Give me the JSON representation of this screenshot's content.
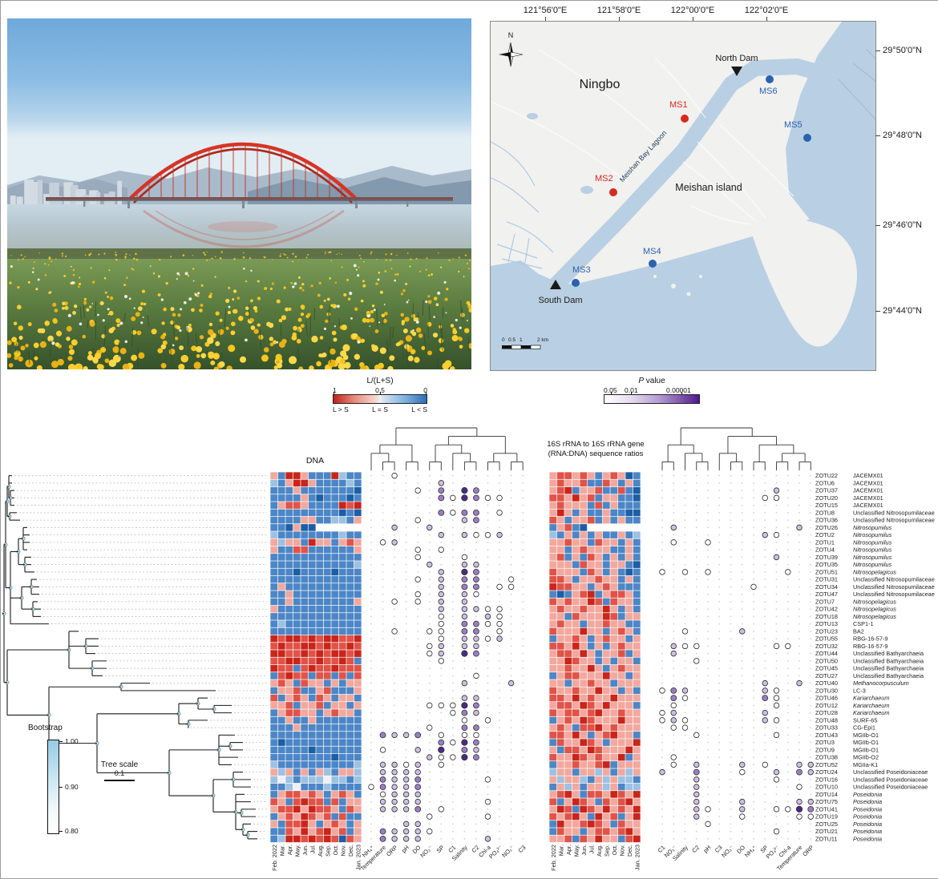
{
  "map": {
    "x_labels": [
      "121°56'0\"E",
      "121°58'0\"E",
      "122°00'0\"E",
      "122°02'0\"E"
    ],
    "y_labels": [
      "29°50'0\"N",
      "29°48'0\"N",
      "29°46'0\"N",
      "29°44'0\"N"
    ],
    "city": "Ningbo",
    "island": "Meishan island",
    "lagoon": "Meishan Bay Lagoon",
    "north_dam": "North Dam",
    "south_dam": "South Dam",
    "compass": "N",
    "scale_ticks": [
      "0",
      "0.5",
      "1",
      "2 km"
    ],
    "sites": [
      {
        "name": "MS1",
        "color": "#d62a20"
      },
      {
        "name": "MS2",
        "color": "#d62a20"
      },
      {
        "name": "MS3",
        "color": "#2b62ae"
      },
      {
        "name": "MS4",
        "color": "#2b62ae"
      },
      {
        "name": "MS5",
        "color": "#2b62ae"
      },
      {
        "name": "MS6",
        "color": "#2b62ae"
      }
    ],
    "water_color": "#b9cfe3",
    "land_color": "#f1f1ef"
  },
  "titles": {
    "dna": "DNA",
    "rna_line1": "16S rRNA to 16S rRNA gene",
    "rna_line2": "(RNA:DNA) sequence ratios"
  },
  "chart_data": {
    "type": "heatmap",
    "legend_ratio": {
      "title": "L/(L+S)",
      "tick_labels": [
        "1",
        "0.5",
        "0"
      ],
      "sub_labels": [
        "L > S",
        "L = S",
        "L < S"
      ]
    },
    "legend_p": {
      "title_italic": "P",
      "title_rest": " value",
      "tick_labels": [
        "0.05",
        "0.01",
        "0.00001"
      ]
    },
    "bootstrap": {
      "title": "Bootstrap",
      "ticks": [
        "1.00",
        "0.90",
        "0.80"
      ]
    },
    "tree_scale": {
      "title": "Tree scale",
      "value": "0.1"
    },
    "months": [
      "Feb. 2022",
      "Mar.",
      "Apr.",
      "May.",
      "Jun.",
      "Jul.",
      "Aug.",
      "Sep.",
      "Oct.",
      "Nov.",
      "Dec.",
      "Jan. 2023"
    ],
    "env_vars_dna": [
      "NH₄⁺",
      "Temperature",
      "ORP",
      "pH",
      "DO",
      "NO₃⁻",
      "SP",
      "C1",
      "Salinity",
      "C2",
      "Chl-a",
      "PO₄³⁻",
      "NO₂⁻",
      "C3"
    ],
    "env_vars_rna": [
      "C1",
      "NO₃⁻",
      "Salinity",
      "C2",
      "pH",
      "C3",
      "NO₂⁻",
      "DO",
      "NH₄⁺",
      "SP",
      "PO₄³⁻",
      "Chl-a",
      "Temperature",
      "ORP"
    ],
    "heat_palette": {
      "B": "#1b5fa6",
      "b": "#4c86c6",
      "l": "#9cc1e2",
      "w": "#eef1f4",
      "p": "#f2a89e",
      "r": "#e05348",
      "R": "#c9251b"
    },
    "bubble_palette": {
      "o": "#ffffff",
      "1": "#cdbfe3",
      "2": "#9a7ec4",
      "3": "#4b2a84"
    },
    "rows": [
      {
        "o": "ZOTU22",
        "t": "JACEMX01",
        "i": 0,
        "d": "pbRRpbbbRlbb",
        "r": "prrprpbprpBb",
        "de": "..o...........",
        "re": ".............."
      },
      {
        "o": "ZOTU6",
        "t": "JACEMX01",
        "i": 0,
        "d": "lbpRRpbbbblb",
        "r": "prpprbbrpbpb",
        "de": "......1.......",
        "re": ".............."
      },
      {
        "o": "ZOTU37",
        "t": "JACEMX01",
        "i": 0,
        "d": "bbbpbbbbbbbB",
        "r": "prRbpprbbrbB",
        "de": "....o.2.32....",
        "re": "..........1..."
      },
      {
        "o": "ZOTU20",
        "t": "JACEMX01",
        "i": 0,
        "d": "bbbbpbBbbbBb",
        "r": "rrpRprbppbbB",
        "de": "......2o32oo..",
        "re": ".........oo..."
      },
      {
        "o": "ZOTU15",
        "t": "JACEMX01",
        "i": 0,
        "d": "bprrpbbbbRrR",
        "r": "prpppbrbpbbb",
        "de": "..............",
        "re": ".............."
      },
      {
        "o": "ZOTU8",
        "t": "Unclassified Nitrosopumilaceae",
        "i": 0,
        "d": "bbbbbbbbbBbB",
        "r": "pRpbpbbpbbBB",
        "de": "......2o22.o..",
        "re": ".............."
      },
      {
        "o": "ZOTU36",
        "t": "Unclassified Nitrosopumilaceae",
        "i": 0,
        "d": "bbbbppbbllbp",
        "r": "rpbpprbpbpbb",
        "de": "....o...12....",
        "re": ".............."
      },
      {
        "o": "ZOTU26",
        "t": "Nitrosopumilus",
        "i": 1,
        "d": "bbBpBB------",
        "r": "bprbB-------",
        "de": "..1..1........",
        "re": ".1..........1."
      },
      {
        "o": "ZOTU2",
        "t": "Nitrosopumilus",
        "i": 1,
        "d": "lbbbbbbbblbb",
        "r": "lbpbpbpbbpbl",
        "de": "......1.1oo1..",
        "re": ".........1o..."
      },
      {
        "o": "ZOTU1",
        "t": "Nitrosopumilus",
        "i": 1,
        "d": "plppbRppbprp",
        "r": "pprppbrppbpb",
        "de": ".o1...........",
        "re": ".o..o........."
      },
      {
        "o": "ZOTU4",
        "t": "Nitrosopumilus",
        "i": 1,
        "d": "pbbrrbbbbbbp",
        "r": "ppbprpppbbpb",
        "de": "....o.o.......",
        "re": ".............."
      },
      {
        "o": "ZOTU39",
        "t": "Nitrosopumilus",
        "i": 1,
        "d": "bbbbbbbbbbbb",
        "r": "prbpbrpbpbpb",
        "de": "....o...o.....",
        "re": "..........1..."
      },
      {
        "o": "ZOTU35",
        "t": "Nitrosopumilus",
        "i": 1,
        "d": "bbbbbbbbbbbl",
        "r": "pppbrppbppbB",
        "de": ".....1..11....",
        "re": ".............."
      },
      {
        "o": "ZOTU51",
        "t": "Nitrosopelagicus",
        "i": 1,
        "d": "bbbBbbbbBbbb",
        "r": "rpppbrpbpbBb",
        "de": "......1.32....",
        "re": "o.o.o......o.."
      },
      {
        "o": "ZOTU31",
        "t": "Unclassified Nitrosopumilaceae",
        "i": 0,
        "d": "bbbbbbbbbbbb",
        "r": "rrpbpprppbpb",
        "de": "....o.1.22..o.",
        "re": ".............."
      },
      {
        "o": "ZOTU34",
        "t": "Unclassified Nitrosopumilaceae",
        "i": 0,
        "d": "bpbbbbbbbbbb",
        "r": "Rrrppbprpbbb",
        "de": "......1.22.oo.",
        "re": "........o....."
      },
      {
        "o": "ZOTU47",
        "t": "Unclassified Nitrosopumilaceae",
        "i": 0,
        "d": "bbpbbbbbbbbb",
        "r": "bBbprRbprrpb",
        "de": "....o.1.1o....",
        "re": ".............."
      },
      {
        "o": "ZOTU7",
        "t": "Nitrosopelagicus",
        "i": 1,
        "d": "bbpbbbbbbbbp",
        "r": "rprppRrbrppb",
        "de": "..o.o.1.1.....",
        "re": ".............."
      },
      {
        "o": "ZOTU42",
        "t": "Nitrosopelagicus",
        "i": 1,
        "d": "pbbbbbbbbbbb",
        "r": "prpprppRpbpb",
        "de": "......1.11oo..",
        "re": ".............."
      },
      {
        "o": "ZOTU18",
        "t": "Nitrosopelagicus",
        "i": 1,
        "d": "bbbbbbbbbbbb",
        "r": "ppbrpppRrbpp",
        "de": "......o.1.1o..",
        "re": ".............."
      },
      {
        "o": "ZOTU13",
        "t": "CSP1-1",
        "i": 0,
        "d": "blbbbbbbbbbb",
        "r": "prppbpprppbb",
        "de": "......o.22oo..",
        "re": ".............."
      },
      {
        "o": "ZOTU23",
        "t": "BA2",
        "i": 0,
        "d": "bbbbbbbbbbbb",
        "r": "rpppRppbprpb",
        "de": "..o..oo.22.o..",
        "re": "..o....1......"
      },
      {
        "o": "ZOTU55",
        "t": "RBG-16-57-9",
        "i": 0,
        "d": "RrRRrRrRRrrR",
        "r": "bpprpbprppbp",
        "de": "......o.11o1..",
        "re": ".............."
      },
      {
        "o": "ZOTU32",
        "t": "RBG-16-57-9",
        "i": 0,
        "d": "rRrrRRrRrrRr",
        "r": "rrpRpbpbprpp",
        "de": ".....o1.11....",
        "re": ".1oo......oo.."
      },
      {
        "o": "ZOTU44",
        "t": "Unclassified Bathyarchaeia",
        "i": 0,
        "d": "RRrrRrRrRRrR",
        "r": "prrpRpbpprbp",
        "de": ".....o1.32....",
        "re": ".1............"
      },
      {
        "o": "ZOTU50",
        "t": "Unclassified Bathyarchaeia",
        "i": 0,
        "d": "rrRRrrRrrRrb",
        "r": "ppRrppbpbppb",
        "de": "......o.......",
        "re": "...o.........."
      },
      {
        "o": "ZOTU45",
        "t": "Unclassified Bathyarchaeia",
        "i": 0,
        "d": "RrrbrRrrRrrr",
        "r": "pprppRpbprpp",
        "de": "..............",
        "re": ".............."
      },
      {
        "o": "ZOTU27",
        "t": "Unclassified Bathyarchaeia",
        "i": 0,
        "d": "brRrrbrrbrbr",
        "r": "bprrpppRppbp",
        "de": ".........o....",
        "re": ".............."
      },
      {
        "o": "ZOTU40",
        "t": "Methanocorpusculum",
        "i": 1,
        "d": "prpbrppbpbpp",
        "r": "ppbpprppbppp",
        "de": "........1...1.",
        "re": ".........1..1."
      },
      {
        "o": "ZOTU30",
        "t": "LC-3",
        "i": 0,
        "d": "bpprbbprbbbp",
        "r": "rpprppRppbpb",
        "de": "..............",
        "re": "o21......1o..."
      },
      {
        "o": "ZOTU46",
        "t": "Kariarchaeum",
        "i": 1,
        "d": "rbprpbrpbppb",
        "r": "rrpRprppRppp",
        "de": "........11....",
        "re": ".2o......2o..."
      },
      {
        "o": "ZOTU12",
        "t": "Kariarchaeum",
        "i": 1,
        "d": "pprbpprbppbp",
        "r": "prrpRrpRpppb",
        "de": ".....ooo32....",
        "re": ".o........o..."
      },
      {
        "o": "ZOTU28",
        "t": "Kariarchaeum",
        "i": 1,
        "d": "bprrppbprppb",
        "r": "rprrprRpprpp",
        "de": ".......o21....",
        "re": "o1.......1...."
      },
      {
        "o": "ZOTU48",
        "t": "SURF-65",
        "i": 0,
        "d": "bbpbbpbbbbbb",
        "r": "bprpRrpppRpp",
        "de": "........o.o...",
        "re": "o1o......1o..."
      },
      {
        "o": "ZOTU33",
        "t": "CG-Epi1",
        "i": 0,
        "d": "bbbpbbbbbbbb",
        "r": "prpbrrRprppp",
        "de": ".....o..22....",
        "re": ".oo..........."
      },
      {
        "o": "ZOTU43",
        "t": "MGIIb-O1",
        "i": 0,
        "d": "bbbbbbbbbbbb",
        "r": "rrpRpbprRppb",
        "de": ".2112.o.oo....",
        "re": "...o......o..."
      },
      {
        "o": "ZOTU3",
        "t": "MGIIb-O1",
        "i": 0,
        "d": "bBbbbbbbbbbb",
        "r": "brppRrpbpppR",
        "de": "......2o32....",
        "re": ".............."
      },
      {
        "o": "ZOTU9",
        "t": "MGIIb-O1",
        "i": 0,
        "d": "bbbbbBbbbbbb",
        "r": "pbrrpRrpppRp",
        "de": ".o..1.3.21....",
        "re": ".............."
      },
      {
        "o": "ZOTU38",
        "t": "MGIIb-O2",
        "i": 0,
        "d": "bbbbbbbbBbbb",
        "r": "rppRrprppRbp",
        "de": ".....1oo32....",
        "re": ".o............"
      },
      {
        "o": "ZOTU52",
        "t": "MGIIa-K1",
        "i": 0,
        "d": "lbbbbbbbbbbl",
        "r": "bpprpprRbppp",
        "de": ".11o1.o.......",
        "re": ".o.1...1.o..11"
      },
      {
        "o": "ZOTU24",
        "t": "Unclassified Poseidoniaceae",
        "i": 0,
        "d": "plpbpbplbppl",
        "r": "lppbpplpbplp",
        "de": ".1111.........",
        "re": "1..2...o..1.21"
      },
      {
        "o": "ZOTU16",
        "t": "Unclassified Poseidoniaceae",
        "i": 0,
        "d": "lwlblllwllbl",
        "r": "plpplbplpllb",
        "de": ".2112.....o...",
        "re": "...1......o..."
      },
      {
        "o": "ZOTU10",
        "t": "Unclassified Poseidoniaceae",
        "i": 0,
        "d": "bblwbbblbbbb",
        "r": "bplpbpplpbll",
        "de": "o2112.........",
        "re": "...1........o."
      },
      {
        "o": "ZOTU14",
        "t": "Poseidonia",
        "i": 1,
        "d": "bprrprpbprpb",
        "r": "prRpbrrpRrpR",
        "de": ".o111.........",
        "re": "...1.........."
      },
      {
        "o": "ZOTU75",
        "t": "Poseidonia",
        "i": 1,
        "d": "rpbrRrrbrbpp",
        "r": "rbpRrpbrprRp",
        "de": ".1111.....o...",
        "re": "...1...1....11"
      },
      {
        "o": "ZOTU41",
        "t": "Poseidonia",
        "i": 1,
        "d": "prrRpRrrpbrp",
        "r": "pRrbRrpRprpR",
        "de": ".1112.o.......",
        "re": "...1o..1..oo32"
      },
      {
        "o": "ZOTU19",
        "t": "Poseidonia",
        "i": 1,
        "d": "bprpRrprbrbb",
        "r": "rprRpbRprbpR",
        "de": ".....o....o...",
        "re": "...1...o....oo"
      },
      {
        "o": "ZOTU25",
        "t": "Poseidonia",
        "i": 1,
        "d": "pbrrRpbprpbp",
        "r": "bRpprRrpbrpp",
        "de": "...11.........",
        "re": "....o........."
      },
      {
        "o": "ZOTU21",
        "t": "Poseidonia",
        "i": 1,
        "d": "bbrpRprRprbp",
        "r": "brppbprrprRp",
        "de": ".2111o........",
        "re": "..........o..."
      },
      {
        "o": "ZOTU11",
        "t": "Poseidonia",
        "i": 1,
        "d": "blRRrRrRrBrp",
        "r": "pprbrpRppbrR",
        "de": ".2111.....1...",
        "re": ".............."
      }
    ]
  }
}
